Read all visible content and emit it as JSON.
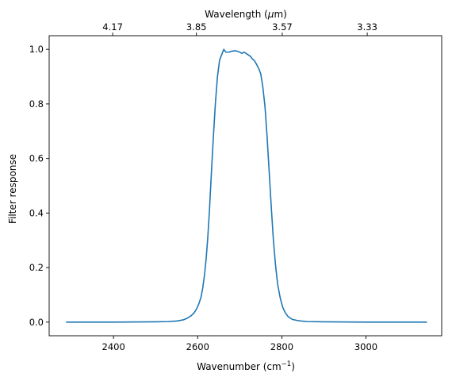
{
  "chart_data": {
    "type": "line",
    "xlabel_main": "Wavenumber (cm",
    "xlabel_sup": "−1",
    "xlabel_end": ")",
    "ylabel": "Filter response",
    "top_xlabel_main": "Wavelength (",
    "top_xlabel_mu": "μ",
    "top_xlabel_end": "m)",
    "xlim": [
      2247,
      3180
    ],
    "ylim": [
      -0.05,
      1.05
    ],
    "grid": false,
    "x_ticks": [
      2400,
      2600,
      2800,
      3000
    ],
    "y_ticks": [
      0.0,
      0.2,
      0.4,
      0.6,
      0.8,
      1.0
    ],
    "top_ticks": [
      {
        "label": "4.17",
        "wavenumber": 2398
      },
      {
        "label": "3.85",
        "wavenumber": 2597
      },
      {
        "label": "3.57",
        "wavenumber": 2801
      },
      {
        "label": "3.33",
        "wavenumber": 3003
      }
    ],
    "colors": {
      "line": "#1f77b4",
      "axes": "#000000"
    },
    "series": [
      {
        "x": [
          2287,
          2400,
          2500,
          2530,
          2550,
          2565,
          2575,
          2585,
          2592,
          2598,
          2603,
          2608,
          2612,
          2616,
          2620,
          2624,
          2628,
          2632,
          2637,
          2642,
          2647,
          2652,
          2657,
          2662,
          2667,
          2670,
          2675,
          2680,
          2690,
          2700,
          2705,
          2710,
          2715,
          2720,
          2725,
          2730,
          2735,
          2740,
          2745,
          2750,
          2755,
          2760,
          2765,
          2770,
          2775,
          2780,
          2785,
          2790,
          2796,
          2802,
          2808,
          2815,
          2825,
          2840,
          2860,
          2900,
          3000,
          3145
        ],
        "y": [
          0.0,
          0.0,
          0.001,
          0.002,
          0.004,
          0.008,
          0.014,
          0.024,
          0.035,
          0.05,
          0.068,
          0.092,
          0.125,
          0.17,
          0.23,
          0.31,
          0.41,
          0.53,
          0.67,
          0.8,
          0.9,
          0.96,
          0.98,
          1.0,
          0.99,
          0.99,
          0.99,
          0.993,
          0.995,
          0.99,
          0.985,
          0.99,
          0.985,
          0.98,
          0.975,
          0.965,
          0.958,
          0.945,
          0.93,
          0.91,
          0.86,
          0.79,
          0.68,
          0.55,
          0.42,
          0.3,
          0.21,
          0.14,
          0.09,
          0.055,
          0.035,
          0.02,
          0.01,
          0.005,
          0.002,
          0.001,
          0.0,
          0.0
        ]
      }
    ]
  }
}
